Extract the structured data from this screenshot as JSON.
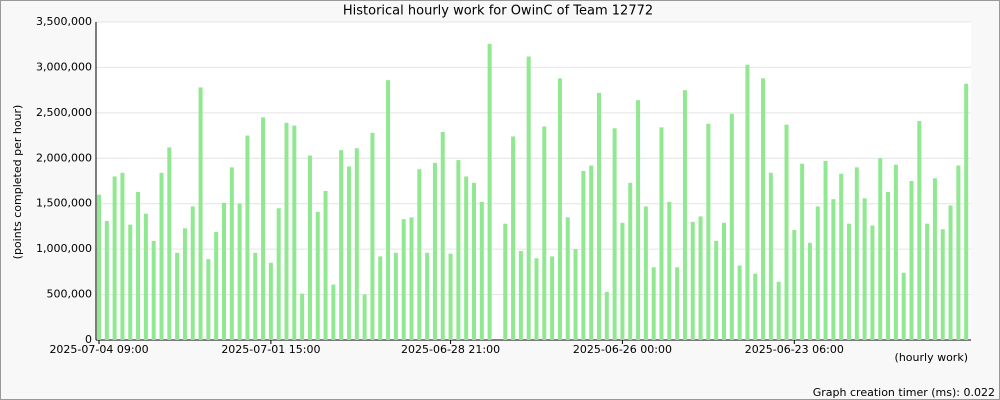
{
  "chart_data": {
    "type": "bar",
    "title": "Historical hourly work for OwinC of Team 12772",
    "y_label": "(points completed per hour)",
    "x_label": "(hourly work)",
    "footer": "Graph creation timer (ms): 0.022",
    "color": "#90e890",
    "grid": true,
    "ylim": [
      0,
      3500000
    ],
    "yticks": [
      0,
      {
        "value": 500000,
        "label": "500,000"
      },
      {
        "value": 1000000,
        "label": "1,000,000"
      },
      {
        "value": 1500000,
        "label": "1,500,000"
      },
      {
        "value": 2000000,
        "label": "2,000,000"
      },
      {
        "value": 2500000,
        "label": "2,500,000"
      },
      {
        "value": 3000000,
        "label": "3,000,000"
      },
      {
        "value": 3500000,
        "label": "3,500,000"
      }
    ],
    "categories": [
      "2025-07-04 09:00",
      null,
      null,
      null,
      null,
      null,
      null,
      null,
      null,
      null,
      null,
      null,
      null,
      null,
      null,
      null,
      null,
      null,
      null,
      null,
      null,
      null,
      "2025-07-01 15:00",
      null,
      null,
      null,
      null,
      null,
      null,
      null,
      null,
      null,
      null,
      null,
      null,
      null,
      null,
      null,
      null,
      null,
      null,
      null,
      null,
      null,
      null,
      "2025-06-28 21:00",
      null,
      null,
      null,
      null,
      null,
      null,
      null,
      null,
      null,
      null,
      null,
      null,
      null,
      null,
      null,
      null,
      null,
      null,
      null,
      null,
      null,
      "2025-06-26 00:00",
      null,
      null,
      null,
      null,
      null,
      null,
      null,
      null,
      null,
      null,
      null,
      null,
      null,
      null,
      null,
      null,
      null,
      null,
      null,
      null,
      null,
      "2025-06-23 06:00",
      null,
      null,
      null,
      null,
      null,
      null,
      null,
      null,
      null,
      null,
      null,
      null,
      null,
      null,
      null,
      null,
      null,
      null,
      null,
      null,
      null,
      null
    ],
    "values": [
      1600000,
      1310000,
      1800000,
      1840000,
      1270000,
      1630000,
      1390000,
      1090000,
      1840000,
      2120000,
      960000,
      1230000,
      1470000,
      2780000,
      890000,
      1190000,
      1510000,
      1900000,
      1500000,
      2250000,
      960000,
      2450000,
      850000,
      1450000,
      2390000,
      2360000,
      510000,
      2030000,
      1410000,
      1640000,
      610000,
      2090000,
      1910000,
      2110000,
      500000,
      2280000,
      920000,
      2860000,
      960000,
      1330000,
      1350000,
      1880000,
      960000,
      1950000,
      2290000,
      950000,
      1980000,
      1800000,
      1730000,
      1520000,
      3260000,
      null,
      1280000,
      2240000,
      980000,
      3120000,
      900000,
      2350000,
      920000,
      2880000,
      1350000,
      1000000,
      1860000,
      1920000,
      2720000,
      530000,
      2330000,
      1290000,
      1730000,
      2640000,
      1470000,
      800000,
      2340000,
      1520000,
      800000,
      2750000,
      1300000,
      1360000,
      2380000,
      1090000,
      1290000,
      2490000,
      820000,
      3030000,
      730000,
      2880000,
      1840000,
      640000,
      2370000,
      1210000,
      1940000,
      1070000,
      1470000,
      1970000,
      1550000,
      1830000,
      1280000,
      1900000,
      1560000,
      1260000,
      2000000,
      1630000,
      1930000,
      740000,
      1750000,
      2410000,
      1280000,
      1780000,
      1220000,
      1480000,
      1920000,
      2820000
    ]
  }
}
